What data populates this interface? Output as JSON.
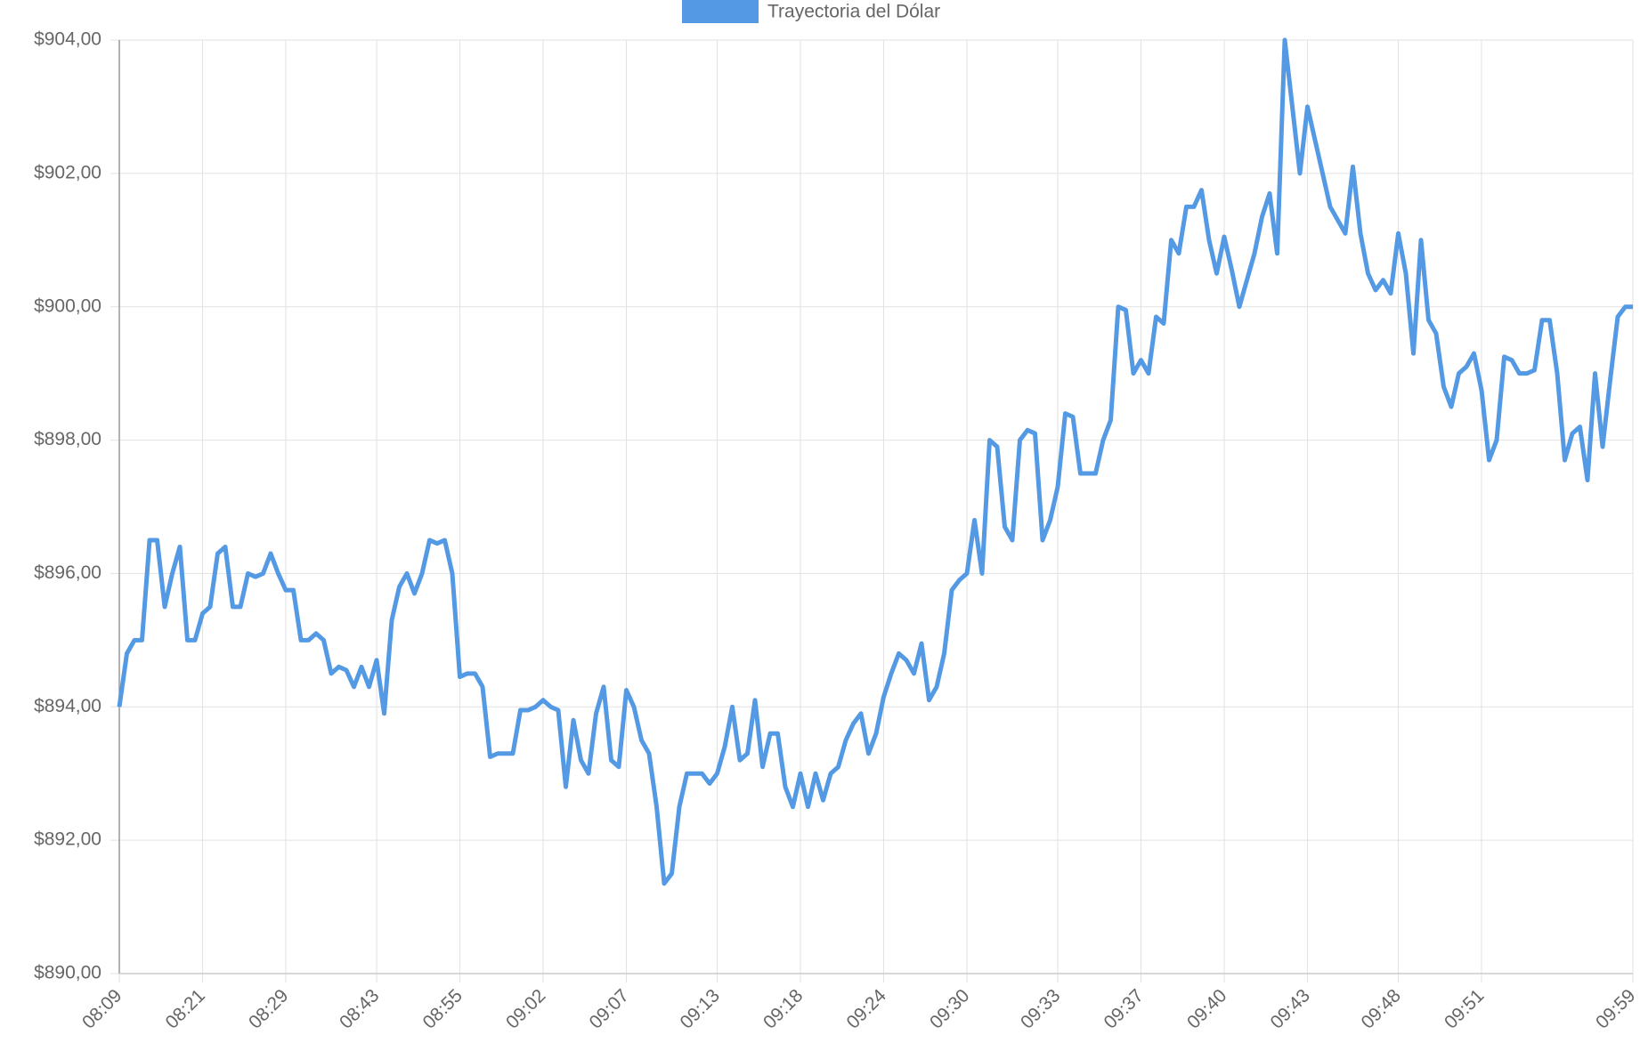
{
  "chart_data": {
    "type": "line",
    "categories": [
      "08:09",
      null,
      null,
      null,
      null,
      null,
      null,
      null,
      null,
      null,
      null,
      "08:21",
      null,
      null,
      null,
      null,
      null,
      null,
      null,
      null,
      null,
      null,
      "08:29",
      null,
      null,
      null,
      null,
      null,
      null,
      null,
      null,
      null,
      null,
      null,
      "08:43",
      null,
      null,
      null,
      null,
      null,
      null,
      null,
      null,
      null,
      null,
      "08:55",
      null,
      null,
      null,
      null,
      null,
      null,
      null,
      null,
      null,
      null,
      "09:02",
      null,
      null,
      null,
      null,
      null,
      null,
      null,
      null,
      null,
      null,
      "09:07",
      null,
      null,
      null,
      null,
      null,
      null,
      null,
      null,
      null,
      null,
      null,
      "09:13",
      null,
      null,
      null,
      null,
      null,
      null,
      null,
      null,
      null,
      null,
      "09:18",
      null,
      null,
      null,
      null,
      null,
      null,
      null,
      null,
      null,
      null,
      "09:24",
      null,
      null,
      null,
      null,
      null,
      null,
      null,
      null,
      null,
      null,
      "09:30",
      null,
      null,
      null,
      null,
      null,
      null,
      null,
      null,
      null,
      null,
      null,
      "09:33",
      null,
      null,
      null,
      null,
      null,
      null,
      null,
      null,
      null,
      null,
      "09:37",
      null,
      null,
      null,
      null,
      null,
      null,
      null,
      null,
      null,
      null,
      "09:40",
      null,
      null,
      null,
      null,
      null,
      null,
      null,
      null,
      null,
      null,
      "09:43",
      null,
      null,
      null,
      null,
      null,
      null,
      null,
      null,
      null,
      null,
      null,
      "09:48",
      null,
      null,
      null,
      null,
      null,
      null,
      null,
      null,
      null,
      null,
      "09:51",
      null,
      null,
      null,
      null,
      null,
      null,
      null,
      null,
      null,
      null,
      null,
      null,
      null,
      null,
      null,
      null,
      null,
      null,
      null,
      "09:59"
    ],
    "series": [
      {
        "name": "Trayectoria del Dólar",
        "color": "#5499e3",
        "values": [
          894.0,
          894.8,
          895.0,
          895.0,
          896.5,
          896.5,
          895.5,
          896.0,
          896.4,
          895.0,
          895.0,
          895.4,
          895.5,
          896.3,
          896.4,
          895.5,
          895.5,
          896.0,
          895.95,
          896.0,
          896.3,
          896.0,
          895.75,
          895.75,
          895.0,
          895.0,
          895.1,
          895.0,
          894.5,
          894.6,
          894.55,
          894.3,
          894.6,
          894.3,
          894.7,
          893.9,
          895.3,
          895.8,
          896.0,
          895.7,
          896.0,
          896.5,
          896.45,
          896.5,
          896.0,
          894.45,
          894.5,
          894.5,
          894.3,
          893.25,
          893.3,
          893.3,
          893.3,
          893.95,
          893.95,
          894.0,
          894.1,
          894.0,
          893.95,
          892.8,
          893.8,
          893.2,
          893.0,
          893.9,
          894.3,
          893.2,
          893.1,
          894.25,
          894.0,
          893.5,
          893.3,
          892.5,
          891.35,
          891.5,
          892.5,
          893.0,
          893.0,
          893.0,
          892.85,
          893.0,
          893.4,
          894.0,
          893.2,
          893.3,
          894.1,
          893.1,
          893.6,
          893.6,
          892.8,
          892.5,
          893.0,
          892.5,
          893.0,
          892.6,
          893.0,
          893.1,
          893.5,
          893.75,
          893.9,
          893.3,
          893.6,
          894.15,
          894.5,
          894.8,
          894.7,
          894.5,
          894.95,
          894.1,
          894.3,
          894.8,
          895.75,
          895.9,
          896.0,
          896.8,
          896.0,
          898.0,
          897.9,
          896.7,
          896.5,
          898.0,
          898.15,
          898.1,
          896.5,
          896.8,
          897.3,
          898.4,
          898.35,
          897.5,
          897.5,
          897.5,
          898.0,
          898.3,
          900.0,
          899.95,
          899.0,
          899.2,
          899.0,
          899.85,
          899.75,
          901.0,
          900.8,
          901.5,
          901.5,
          901.75,
          901.0,
          900.5,
          901.05,
          900.55,
          900.0,
          900.4,
          900.8,
          901.35,
          901.7,
          900.8,
          904.0,
          903.0,
          902.0,
          903.0,
          902.5,
          902.0,
          901.5,
          901.3,
          901.1,
          902.1,
          901.1,
          900.5,
          900.25,
          900.4,
          900.2,
          901.1,
          900.5,
          899.3,
          901.0,
          899.8,
          899.6,
          898.8,
          898.5,
          899.0,
          899.1,
          899.3,
          898.75,
          897.7,
          898.0,
          899.25,
          899.2,
          899.0,
          899.0,
          899.05,
          899.8,
          899.8,
          899.0,
          897.7,
          898.1,
          898.2,
          897.4,
          899.0,
          897.9,
          898.9,
          899.85,
          900.0,
          900.0
        ]
      }
    ],
    "ylim": [
      890,
      904
    ],
    "yticks": [
      {
        "value": 890,
        "label": "$890,00"
      },
      {
        "value": 892,
        "label": "$892,00"
      },
      {
        "value": 894,
        "label": "$894,00"
      },
      {
        "value": 896,
        "label": "$896,00"
      },
      {
        "value": 898,
        "label": "$898,00"
      },
      {
        "value": 900,
        "label": "$900,00"
      },
      {
        "value": 902,
        "label": "$902,00"
      },
      {
        "value": 904,
        "label": "$904,00"
      }
    ],
    "grid": true,
    "legend": "top"
  }
}
